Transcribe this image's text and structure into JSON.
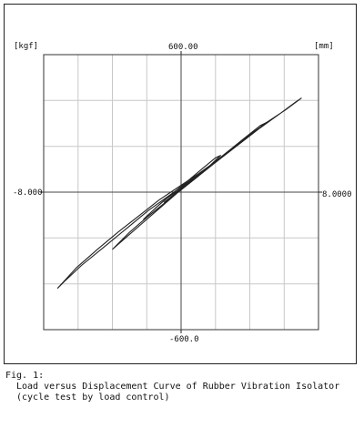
{
  "chart_data": {
    "type": "line",
    "title": "",
    "x_unit": "[mm]",
    "y_unit": "[kgf]",
    "xlim": [
      -8.0,
      8.0
    ],
    "ylim": [
      -600.0,
      600.0
    ],
    "x_tick_labels": {
      "min": "-8.000",
      "max": "8.0000"
    },
    "y_tick_labels": {
      "max": "600.00",
      "min": "-600.0"
    },
    "grid": true,
    "series": [
      {
        "x": [
          -7.2,
          -6.1,
          -4.8,
          -3.6,
          -2.4,
          -1.3,
          -0.2,
          1.0,
          2.3,
          3.6,
          4.9,
          6.1,
          7.0,
          6.7,
          5.8,
          4.6,
          3.3,
          2.0,
          0.7,
          -0.6,
          -1.9,
          -3.2,
          -4.5,
          -5.8,
          -6.8,
          -7.2
        ],
        "y": [
          -420,
          -330,
          -245,
          -170,
          -100,
          -35,
          20,
          80,
          150,
          225,
          300,
          360,
          410,
          395,
          345,
          280,
          205,
          130,
          60,
          -10,
          -80,
          -160,
          -240,
          -320,
          -390,
          -420
        ]
      },
      {
        "x": [
          -4.0,
          -3.0,
          -2.0,
          -1.0,
          0.0,
          1.0,
          2.0,
          3.0,
          4.0,
          5.0,
          4.6,
          3.6,
          2.6,
          1.6,
          0.6,
          -0.4,
          -1.4,
          -2.4,
          -3.4,
          -4.0
        ],
        "y": [
          -250,
          -175,
          -110,
          -50,
          10,
          70,
          130,
          190,
          250,
          305,
          290,
          230,
          170,
          110,
          50,
          -15,
          -80,
          -145,
          -210,
          -250
        ]
      },
      {
        "x": [
          -2.2,
          -1.5,
          -0.8,
          0.0,
          0.8,
          1.6,
          2.3,
          2.0,
          1.2,
          0.4,
          -0.4,
          -1.2,
          -2.0,
          -2.2
        ],
        "y": [
          -120,
          -70,
          -25,
          15,
          60,
          110,
          160,
          150,
          100,
          50,
          0,
          -50,
          -105,
          -120
        ]
      },
      {
        "x": [
          -1.0,
          -0.5,
          0.0,
          0.5,
          1.0,
          0.8,
          0.3,
          -0.2,
          -0.7,
          -1.0
        ],
        "y": [
          -45,
          -15,
          10,
          40,
          70,
          65,
          35,
          5,
          -30,
          -45
        ]
      }
    ]
  },
  "caption": {
    "fig": "Fig. 1:",
    "line1": "Load versus Displacement Curve of Rubber Vibration Isolator",
    "line2": "(cycle test by load control)"
  }
}
